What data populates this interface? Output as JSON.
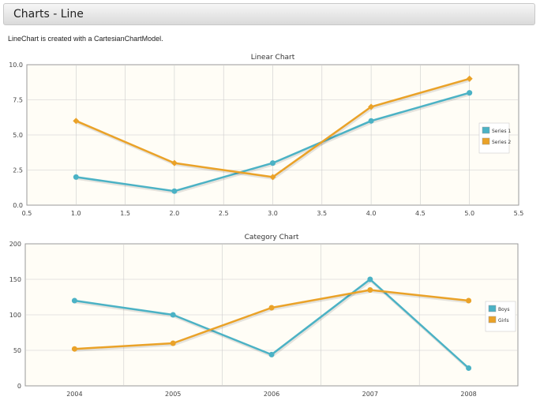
{
  "page": {
    "title": "Charts - Line",
    "description": "LineChart is created with a CartesianChartModel."
  },
  "colors": {
    "series1": "#4bb2c5",
    "series2": "#eaa228",
    "plot_bg": "#fffdf6",
    "grid": "#cccccc"
  },
  "chart_data": [
    {
      "type": "line",
      "title": "Linear Chart",
      "xlim": [
        0.5,
        5.5
      ],
      "ylim": [
        0,
        10
      ],
      "xticks": [
        "0.5",
        "1.0",
        "1.5",
        "2.0",
        "2.5",
        "3.0",
        "3.5",
        "4.0",
        "4.5",
        "5.0",
        "5.5"
      ],
      "yticks": [
        "0.0",
        "2.5",
        "5.0",
        "7.5",
        "10.0"
      ],
      "x": [
        1,
        2,
        3,
        4,
        5
      ],
      "series": [
        {
          "name": "Series 1",
          "values": [
            2,
            1,
            3,
            6,
            8
          ]
        },
        {
          "name": "Series 2",
          "values": [
            6,
            3,
            2,
            7,
            9
          ]
        }
      ],
      "grid": true,
      "legend": "right"
    },
    {
      "type": "line",
      "title": "Category Chart",
      "categories": [
        "2004",
        "2005",
        "2006",
        "2007",
        "2008"
      ],
      "ylim": [
        0,
        200
      ],
      "yticks": [
        "0",
        "50",
        "100",
        "150",
        "200"
      ],
      "series": [
        {
          "name": "Boys",
          "values": [
            120,
            100,
            44,
            150,
            25
          ]
        },
        {
          "name": "Girls",
          "values": [
            52,
            60,
            110,
            135,
            120
          ]
        }
      ],
      "grid": true,
      "legend": "right"
    }
  ]
}
